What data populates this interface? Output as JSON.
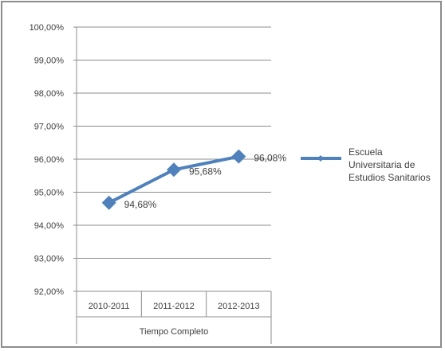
{
  "chart_data": {
    "type": "line",
    "categories": [
      "2010-2011",
      "2011-2012",
      "2012-2013"
    ],
    "group_label": "Tiempo Completo",
    "series": [
      {
        "name": "Escuela Universitaria de Estudios Sanitarios",
        "values": [
          94.68,
          95.68,
          96.08
        ],
        "data_labels": [
          "94,68%",
          "95,68%",
          "96,08%"
        ],
        "color": "#4f81bd"
      }
    ],
    "y_ticks": [
      {
        "value": 92,
        "label": "92,00%"
      },
      {
        "value": 93,
        "label": "93,00%"
      },
      {
        "value": 94,
        "label": "94,00%"
      },
      {
        "value": 95,
        "label": "95,00%"
      },
      {
        "value": 96,
        "label": "96,00%"
      },
      {
        "value": 97,
        "label": "97,00%"
      },
      {
        "value": 98,
        "label": "98,00%"
      },
      {
        "value": 99,
        "label": "99,00%"
      },
      {
        "value": 100,
        "label": "100,00%"
      }
    ],
    "ylim": [
      92,
      100
    ],
    "grid": true,
    "legend_position": "right",
    "gridline_color": "#8c8c8c"
  }
}
